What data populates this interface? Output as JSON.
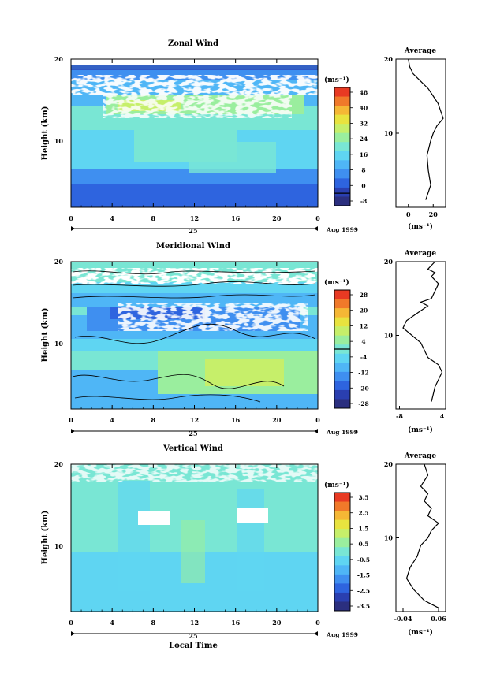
{
  "colors": {
    "palette": [
      "#2b2f7f",
      "#2a3fb0",
      "#2e64df",
      "#3f8ff0",
      "#4fb6f6",
      "#5fd5f2",
      "#79e6d4",
      "#9aee9e",
      "#c6ef6a",
      "#e8e33f",
      "#f5b735",
      "#f0792a",
      "#e83a23"
    ]
  },
  "chart_data": [
    {
      "type": "heatmap",
      "title": "Zonal Wind",
      "ylabel": "Height (km)",
      "xticks": [
        "0",
        "4",
        "8",
        "12",
        "16",
        "20",
        "0"
      ],
      "xlim": [
        0,
        24
      ],
      "ylim": [
        0,
        20
      ],
      "yticks": [
        10,
        20
      ],
      "date_labels": [
        "25",
        "Aug 1999"
      ],
      "colorbar": {
        "unit": "(ms⁻¹)",
        "ticks": [
          "48",
          "40",
          "32",
          "24",
          "16",
          "8",
          "0",
          "-8"
        ]
      },
      "profile": {
        "title": "Average",
        "xticks": [
          "0",
          "20"
        ],
        "xlim": [
          -10,
          30
        ],
        "xlabel": "(ms⁻¹)",
        "x": [
          14,
          18,
          16,
          15,
          18,
          20,
          23,
          28,
          26,
          24,
          20,
          16,
          10,
          4,
          1,
          0
        ],
        "y": [
          1,
          3,
          5,
          7,
          9,
          10,
          11,
          12,
          13,
          14,
          15,
          16,
          17,
          18,
          19,
          20
        ]
      }
    },
    {
      "type": "heatmap",
      "title": "Meridional Wind",
      "ylabel": "Height (km)",
      "xticks": [
        "0",
        "4",
        "8",
        "12",
        "16",
        "20",
        "0"
      ],
      "xlim": [
        0,
        24
      ],
      "ylim": [
        0,
        20
      ],
      "yticks": [
        10,
        20
      ],
      "date_labels": [
        "25",
        "Aug 1999"
      ],
      "colorbar": {
        "unit": "(ms⁻¹)",
        "ticks": [
          "28",
          "20",
          "12",
          "4",
          "-4",
          "-12",
          "-20",
          "-28"
        ]
      },
      "profile": {
        "title": "Average",
        "xticks": [
          "-8",
          "4"
        ],
        "xlim": [
          -9,
          5
        ],
        "xlabel": "(ms⁻¹)",
        "x": [
          1,
          1.5,
          2,
          4,
          3,
          0,
          -2,
          -7,
          -6,
          -3,
          0,
          -2,
          1,
          2,
          3,
          1,
          2,
          0,
          2
        ],
        "y": [
          1,
          2,
          3,
          5,
          6,
          7,
          9,
          11,
          12,
          13,
          14,
          14.5,
          15,
          16,
          17,
          18,
          18.5,
          19,
          20
        ]
      }
    },
    {
      "type": "heatmap",
      "title": "Vertical Wind",
      "ylabel": "Height (km)",
      "xlabel": "Local Time",
      "xticks": [
        "0",
        "4",
        "8",
        "12",
        "16",
        "20",
        "0"
      ],
      "xlim": [
        0,
        24
      ],
      "ylim": [
        0,
        20
      ],
      "yticks": [
        10,
        20
      ],
      "date_labels": [
        "25",
        "Aug 1999"
      ],
      "colorbar": {
        "unit": "(ms⁻¹)",
        "ticks": [
          "3.5",
          "2.5",
          "1.5",
          "0.5",
          "-0.5",
          "-1.5",
          "-2.5",
          "-3.5"
        ]
      },
      "profile": {
        "title": "Average",
        "xticks": [
          "-0.04",
          "0.06"
        ],
        "xlim": [
          -0.06,
          0.08
        ],
        "xlabel": "(ms⁻¹)",
        "x": [
          0.06,
          0.02,
          -0.01,
          -0.03,
          -0.02,
          0.0,
          0.01,
          0.03,
          0.04,
          0.06,
          0.03,
          0.04,
          0.02,
          0.03,
          0.01,
          0.03,
          0.02
        ],
        "y": [
          0.5,
          1.5,
          3,
          4.5,
          6,
          7.5,
          9,
          10,
          11,
          12,
          13,
          14,
          15,
          16,
          17,
          18.5,
          20
        ]
      }
    }
  ]
}
